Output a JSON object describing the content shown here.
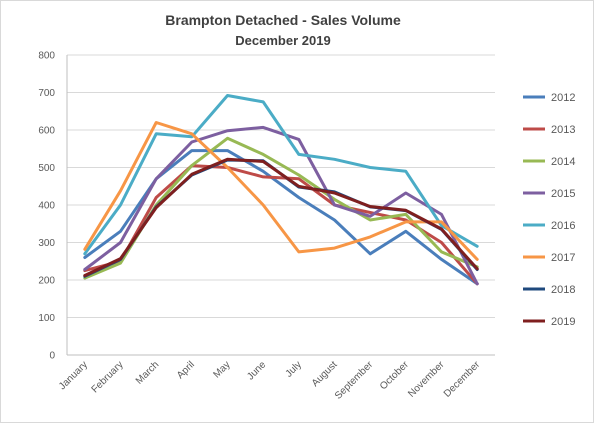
{
  "chart_data": {
    "type": "line",
    "title": "Brampton Detached - Sales Volume",
    "subtitle": "December 2019",
    "xlabel": "",
    "ylabel": "",
    "categories": [
      "January",
      "February",
      "March",
      "April",
      "May",
      "June",
      "July",
      "August",
      "September",
      "October",
      "November",
      "December"
    ],
    "ylim": [
      0,
      800
    ],
    "yticks": [
      "0",
      "100",
      "200",
      "300",
      "400",
      "500",
      "600",
      "700",
      "800"
    ],
    "grid": true,
    "legend_position": "right",
    "series": [
      {
        "name": "2012",
        "color": "#4a7ebb",
        "values": [
          260,
          330,
          470,
          545,
          545,
          490,
          420,
          360,
          270,
          330,
          255,
          190
        ]
      },
      {
        "name": "2013",
        "color": "#be4b48",
        "values": [
          225,
          250,
          420,
          505,
          500,
          475,
          470,
          400,
          380,
          360,
          300,
          190
        ]
      },
      {
        "name": "2014",
        "color": "#98b954",
        "values": [
          205,
          245,
          400,
          505,
          578,
          535,
          480,
          415,
          360,
          375,
          275,
          235
        ]
      },
      {
        "name": "2015",
        "color": "#7d5fa0",
        "values": [
          228,
          300,
          470,
          568,
          598,
          607,
          575,
          400,
          370,
          432,
          375,
          190
        ]
      },
      {
        "name": "2016",
        "color": "#4bacc6",
        "values": [
          270,
          400,
          590,
          582,
          692,
          675,
          535,
          522,
          500,
          490,
          345,
          290
        ]
      },
      {
        "name": "2017",
        "color": "#f79646",
        "values": [
          282,
          438,
          620,
          590,
          500,
          400,
          275,
          285,
          315,
          355,
          355,
          255
        ]
      },
      {
        "name": "2018",
        "color": "#1f497d",
        "values": [
          210,
          255,
          395,
          480,
          520,
          518,
          448,
          435,
          395,
          385,
          335,
          228
        ]
      },
      {
        "name": "2019",
        "color": "#7f1f1f",
        "values": [
          212,
          257,
          393,
          482,
          522,
          516,
          450,
          432,
          396,
          386,
          336,
          230
        ]
      }
    ]
  }
}
